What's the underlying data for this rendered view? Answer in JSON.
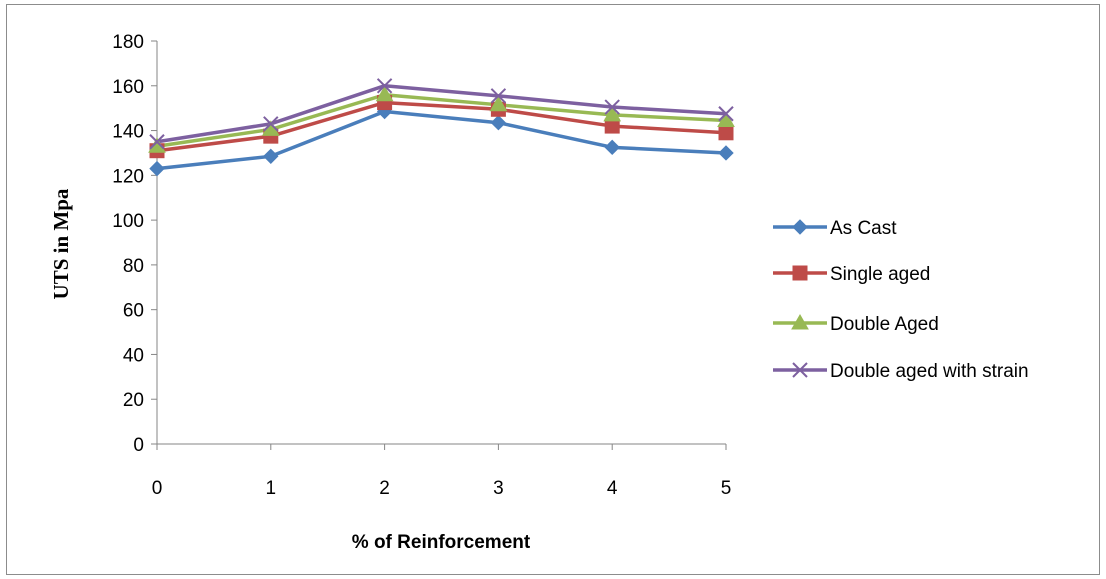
{
  "chart_data": {
    "type": "line",
    "title": "",
    "xlabel": "% of Reinforcement",
    "ylabel": "UTS in Mpa",
    "x": [
      0,
      1,
      2,
      3,
      4,
      5
    ],
    "x_tick_labels": [
      "0",
      "1",
      "2",
      "3",
      "4",
      "5"
    ],
    "ylim": [
      0,
      180
    ],
    "y_ticks": [
      0,
      20,
      40,
      60,
      80,
      100,
      120,
      140,
      160,
      180
    ],
    "grid": false,
    "legend_position": "right",
    "series": [
      {
        "name": "As Cast",
        "values": [
          123,
          128.5,
          148.5,
          143.5,
          132.5,
          130
        ],
        "color": "#4a7ebb",
        "marker": "diamond"
      },
      {
        "name": "Single aged",
        "values": [
          131,
          137.5,
          152.5,
          149.5,
          142,
          139
        ],
        "color": "#be4b48",
        "marker": "square"
      },
      {
        "name": "Double Aged",
        "values": [
          133,
          140.5,
          156,
          151.5,
          147,
          144.5
        ],
        "color": "#98b954",
        "marker": "triangle"
      },
      {
        "name": "Double aged with strain",
        "values": [
          135,
          143,
          160,
          155.5,
          150.5,
          147.5
        ],
        "color": "#7d60a0",
        "marker": "x"
      }
    ]
  }
}
